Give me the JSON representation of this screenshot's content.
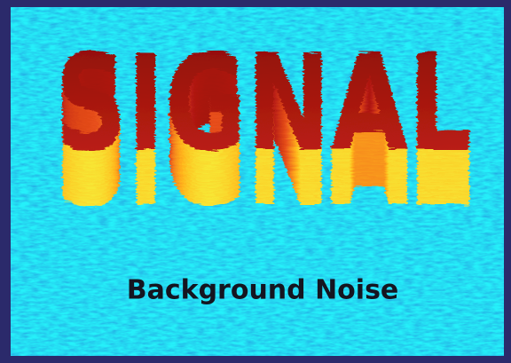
{
  "title": "SIGNAL",
  "caption": "Background Noise"
}
